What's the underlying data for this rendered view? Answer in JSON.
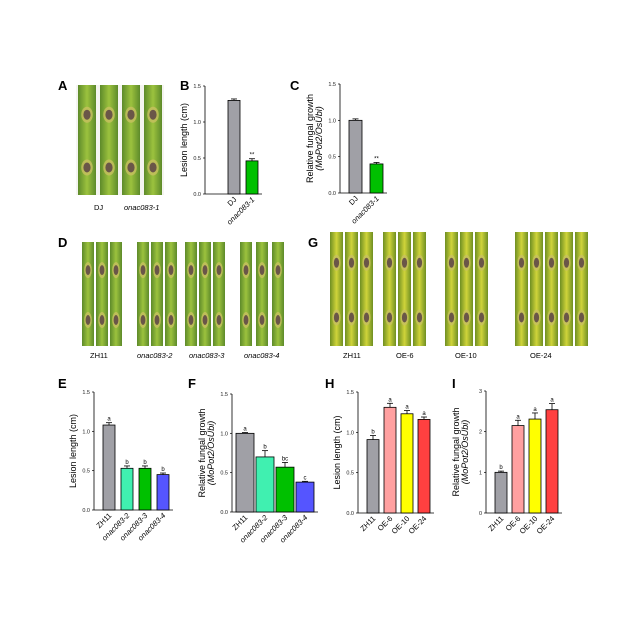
{
  "panels": {
    "A": {
      "label": "A",
      "captions": [
        "DJ",
        "onac083-1"
      ]
    },
    "D": {
      "label": "D",
      "captions": [
        "ZH11",
        "onac083-2",
        "onac083-3",
        "onac083-4"
      ]
    },
    "G": {
      "label": "G",
      "captions": [
        "ZH11",
        "OE-6",
        "OE-10",
        "OE-24"
      ]
    }
  },
  "colors": {
    "grey": "#a0a0a6",
    "green": "#00c000",
    "mint": "#40f0b0",
    "blue": "#5555ff",
    "pink": "#ffa0a0",
    "yellow": "#ffff00",
    "red": "#ff4040"
  },
  "chart_data": [
    {
      "id": "B",
      "type": "bar",
      "title": "B",
      "ylabel": "Lesion length (cm)",
      "ylim": [
        0,
        1.5
      ],
      "yticks": [
        "0.0",
        "0.5",
        "1.0",
        "1.5"
      ],
      "categories": [
        "DJ",
        "onac083-1"
      ],
      "values": [
        1.3,
        0.46
      ],
      "errors": [
        0.02,
        0.03
      ],
      "annotations": [
        "",
        "**"
      ],
      "colors": [
        "#a0a0a6",
        "#00c000"
      ]
    },
    {
      "id": "C",
      "type": "bar",
      "title": "C",
      "ylabel": "Relative fungal growth",
      "ylabel2": "(MoPot2/OsUbi)",
      "ylim": [
        0,
        1.5
      ],
      "yticks": [
        "0.0",
        "0.5",
        "1.0",
        "1.5"
      ],
      "categories": [
        "DJ",
        "onac083-1"
      ],
      "values": [
        1.0,
        0.4
      ],
      "errors": [
        0.02,
        0.02
      ],
      "annotations": [
        "",
        "**"
      ],
      "colors": [
        "#a0a0a6",
        "#00c000"
      ]
    },
    {
      "id": "E",
      "type": "bar",
      "title": "E",
      "ylabel": "Lesion length (cm)",
      "ylim": [
        0,
        1.5
      ],
      "yticks": [
        "0.0",
        "0.5",
        "1.0",
        "1.5"
      ],
      "categories": [
        "ZH11",
        "onac083-2",
        "onac083-3",
        "onac083-4"
      ],
      "values": [
        1.08,
        0.53,
        0.53,
        0.45
      ],
      "errors": [
        0.03,
        0.03,
        0.03,
        0.02
      ],
      "annotations": [
        "a",
        "b",
        "b",
        "b"
      ],
      "colors": [
        "#a0a0a6",
        "#40f0b0",
        "#00c000",
        "#5555ff"
      ]
    },
    {
      "id": "F",
      "type": "bar",
      "title": "F",
      "ylabel": "Relative fungal growth",
      "ylabel2": "(MoPot2/OsUbi)",
      "ylim": [
        0,
        1.5
      ],
      "yticks": [
        "0.0",
        "0.5",
        "1.0",
        "1.5"
      ],
      "categories": [
        "ZH11",
        "onac083-2",
        "onac083-3",
        "onac083-4"
      ],
      "values": [
        1.0,
        0.7,
        0.57,
        0.38
      ],
      "errors": [
        0.01,
        0.08,
        0.06,
        0.01
      ],
      "annotations": [
        "a",
        "b",
        "bc",
        "c"
      ],
      "colors": [
        "#a0a0a6",
        "#40f0b0",
        "#00c000",
        "#5555ff"
      ]
    },
    {
      "id": "H",
      "type": "bar",
      "title": "H",
      "ylabel": "Lesion length (cm)",
      "ylim": [
        0,
        1.5
      ],
      "yticks": [
        "0.0",
        "0.5",
        "1.0",
        "1.5"
      ],
      "categories": [
        "ZH11",
        "OE-6",
        "OE-10",
        "OE-24"
      ],
      "values": [
        0.91,
        1.31,
        1.23,
        1.16
      ],
      "errors": [
        0.05,
        0.05,
        0.04,
        0.03
      ],
      "annotations": [
        "b",
        "a",
        "a",
        "a"
      ],
      "colors": [
        "#a0a0a6",
        "#ffa0a0",
        "#ffff00",
        "#ff4040"
      ]
    },
    {
      "id": "I",
      "type": "bar",
      "title": "I",
      "ylabel": "Relative fungal growth",
      "ylabel2": "(MoPot2/OsUbi)",
      "ylim": [
        0,
        3
      ],
      "yticks": [
        "0",
        "1",
        "2",
        "3"
      ],
      "categories": [
        "ZH11",
        "OE-6",
        "OE-10",
        "OE-24"
      ],
      "values": [
        1.0,
        2.15,
        2.31,
        2.54
      ],
      "errors": [
        0.03,
        0.13,
        0.15,
        0.15
      ],
      "annotations": [
        "b",
        "a",
        "a",
        "a"
      ],
      "colors": [
        "#a0a0a6",
        "#ffa0a0",
        "#ffff00",
        "#ff4040"
      ]
    }
  ]
}
